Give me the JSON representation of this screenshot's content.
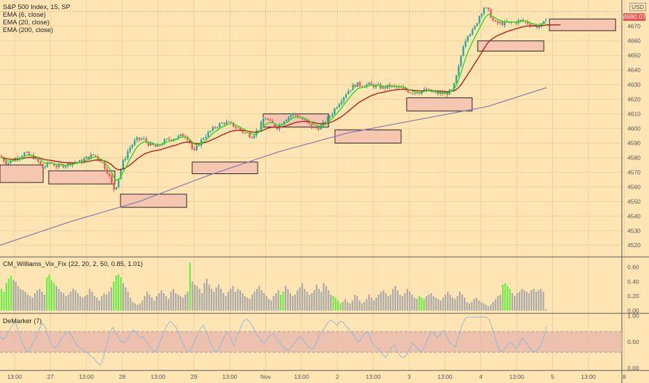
{
  "main_legend": {
    "title": "S&P 500 Index, 15, SP",
    "ema6": "EMA (6, close)",
    "ema20": "EMA (20, close)",
    "ema200": "EMA (200, close)"
  },
  "currency": "USD",
  "current_price": "4680.07",
  "vix_legend": "CM_Williams_Vix_Fix (22, 20, 2, 50, 0.85, 1.01)",
  "dem_legend": "DeMarker (7)",
  "colors": {
    "background": "#ffe5b4",
    "candle_up": "#26a69a",
    "candle_down": "#ef5350",
    "ema6": "#22dd22",
    "ema20": "#b71c1c",
    "ema200": "#8a7fb0",
    "zone_fill": "#f5c6b0",
    "vix_normal": "#a9a9a9",
    "vix_spike": "#66ee44",
    "demarker_line": "#8fb8d8",
    "demarker_band": "#e7b9ac"
  },
  "chart_data": [
    {
      "type": "candlestick",
      "title": "S&P 500 Index, 15, SP",
      "x_ticks": [
        "13:00",
        "27",
        "13:00",
        "28",
        "13:00",
        "29",
        "13:00",
        "Nov",
        "13:00",
        "2",
        "13:00",
        "3",
        "13:00",
        "4",
        "13:00",
        "5",
        "13:00",
        "8"
      ],
      "y_ticks": [
        4520,
        4530,
        4540,
        4550,
        4560,
        4570,
        4580,
        4590,
        4600,
        4610,
        4620,
        4630,
        4640,
        4650,
        4660,
        4670
      ],
      "ylim": [
        4512,
        4688
      ],
      "grid": true,
      "series": [
        {
          "name": "EMA (6, close)",
          "kind": "line"
        },
        {
          "name": "EMA (20, close)",
          "kind": "line"
        },
        {
          "name": "EMA (200, close)",
          "kind": "line"
        }
      ],
      "trend_points": [
        [
          0,
          4581
        ],
        [
          10,
          4576
        ],
        [
          20,
          4579
        ],
        [
          35,
          4583
        ],
        [
          50,
          4580
        ],
        [
          62,
          4573
        ],
        [
          72,
          4577
        ],
        [
          82,
          4574
        ],
        [
          92,
          4575
        ],
        [
          105,
          4577
        ],
        [
          115,
          4577
        ],
        [
          125,
          4580
        ],
        [
          135,
          4582
        ],
        [
          145,
          4578
        ],
        [
          155,
          4570
        ],
        [
          163,
          4558
        ],
        [
          168,
          4562
        ],
        [
          175,
          4575
        ],
        [
          185,
          4586
        ],
        [
          195,
          4592
        ],
        [
          205,
          4593
        ],
        [
          215,
          4589
        ],
        [
          225,
          4587
        ],
        [
          235,
          4591
        ],
        [
          245,
          4593
        ],
        [
          255,
          4594
        ],
        [
          265,
          4596
        ],
        [
          272,
          4592
        ],
        [
          278,
          4583
        ],
        [
          285,
          4589
        ],
        [
          292,
          4594
        ],
        [
          302,
          4598
        ],
        [
          312,
          4602
        ],
        [
          322,
          4604
        ],
        [
          332,
          4603
        ],
        [
          342,
          4600
        ],
        [
          352,
          4597
        ],
        [
          362,
          4595
        ],
        [
          372,
          4600
        ],
        [
          380,
          4608
        ],
        [
          388,
          4604
        ],
        [
          398,
          4601
        ],
        [
          408,
          4606
        ],
        [
          420,
          4610
        ],
        [
          430,
          4608
        ],
        [
          440,
          4604
        ],
        [
          450,
          4600
        ],
        [
          460,
          4601
        ],
        [
          470,
          4606
        ],
        [
          480,
          4613
        ],
        [
          490,
          4620
        ],
        [
          500,
          4626
        ],
        [
          510,
          4630
        ],
        [
          520,
          4630
        ],
        [
          530,
          4630
        ],
        [
          540,
          4629
        ],
        [
          550,
          4628
        ],
        [
          560,
          4629
        ],
        [
          570,
          4628
        ],
        [
          580,
          4627
        ],
        [
          590,
          4625
        ],
        [
          600,
          4625
        ],
        [
          610,
          4626
        ],
        [
          620,
          4625
        ],
        [
          630,
          4624
        ],
        [
          640,
          4624
        ],
        [
          650,
          4626
        ],
        [
          658,
          4640
        ],
        [
          665,
          4657
        ],
        [
          672,
          4665
        ],
        [
          680,
          4667
        ],
        [
          688,
          4677
        ],
        [
          695,
          4683
        ],
        [
          702,
          4680
        ],
        [
          710,
          4672
        ],
        [
          720,
          4672
        ],
        [
          730,
          4672
        ],
        [
          740,
          4673
        ],
        [
          750,
          4674
        ],
        [
          760,
          4672
        ],
        [
          770,
          4670
        ],
        [
          780,
          4671
        ],
        [
          785,
          4677
        ]
      ],
      "ema200_points": [
        [
          0,
          4520
        ],
        [
          100,
          4536
        ],
        [
          200,
          4550
        ],
        [
          300,
          4568
        ],
        [
          400,
          4584
        ],
        [
          500,
          4597
        ],
        [
          600,
          4606
        ],
        [
          700,
          4615
        ],
        [
          785,
          4628
        ]
      ],
      "support_zones": [
        {
          "x0": 0,
          "x1": 62,
          "lo": 4563,
          "hi": 4575
        },
        {
          "x0": 70,
          "x1": 165,
          "lo": 4562,
          "hi": 4571
        },
        {
          "x0": 173,
          "x1": 268,
          "lo": 4546,
          "hi": 4555
        },
        {
          "x0": 276,
          "x1": 370,
          "lo": 4569,
          "hi": 4577
        },
        {
          "x0": 378,
          "x1": 472,
          "lo": 4601,
          "hi": 4610
        },
        {
          "x0": 481,
          "x1": 576,
          "lo": 4590,
          "hi": 4599
        },
        {
          "x0": 584,
          "x1": 678,
          "lo": 4612,
          "hi": 4621
        },
        {
          "x0": 686,
          "x1": 781,
          "lo": 4653,
          "hi": 4660
        },
        {
          "x0": 789,
          "x1": 884,
          "lo": 4667,
          "hi": 4675
        }
      ]
    },
    {
      "type": "bar",
      "title": "CM_Williams_Vix_Fix (22, 20, 2, 50, 0.85, 1.01)",
      "y_ticks": [
        0.0,
        0.2,
        0.4,
        0.6
      ],
      "ylim": [
        0,
        0.72
      ],
      "values": [
        0.3,
        0.26,
        0.38,
        0.44,
        0.48,
        0.42,
        0.4,
        0.34,
        0.3,
        0.28,
        0.26,
        0.22,
        0.2,
        0.18,
        0.24,
        0.28,
        0.3,
        0.26,
        0.22,
        0.46,
        0.5,
        0.42,
        0.38,
        0.34,
        0.3,
        0.26,
        0.24,
        0.2,
        0.22,
        0.26,
        0.3,
        0.28,
        0.24,
        0.2,
        0.18,
        0.2,
        0.22,
        0.3,
        0.26,
        0.2,
        0.18,
        0.14,
        0.2,
        0.24,
        0.22,
        0.26,
        0.32,
        0.4,
        0.48,
        0.5,
        0.46,
        0.38,
        0.32,
        0.26,
        0.18,
        0.12,
        0.1,
        0.08,
        0.1,
        0.14,
        0.2,
        0.26,
        0.22,
        0.18,
        0.14,
        0.2,
        0.24,
        0.28,
        0.24,
        0.2,
        0.16,
        0.26,
        0.3,
        0.24,
        0.22,
        0.2,
        0.18,
        0.22,
        0.26,
        0.66,
        0.4,
        0.36,
        0.34,
        0.3,
        0.24,
        0.38,
        0.44,
        0.36,
        0.3,
        0.26,
        0.32,
        0.36,
        0.3,
        0.24,
        0.2,
        0.26,
        0.3,
        0.34,
        0.26,
        0.3,
        0.28,
        0.24,
        0.2,
        0.18,
        0.16,
        0.22,
        0.26,
        0.3,
        0.34,
        0.28,
        0.24,
        0.2,
        0.16,
        0.14,
        0.2,
        0.24,
        0.28,
        0.22,
        0.26,
        0.34,
        0.3,
        0.24,
        0.2,
        0.22,
        0.28,
        0.32,
        0.38,
        0.3,
        0.26,
        0.22,
        0.24,
        0.28,
        0.36,
        0.3,
        0.26,
        0.38,
        0.34,
        0.28,
        0.22,
        0.2,
        0.18,
        0.14,
        0.1,
        0.12,
        0.16,
        0.12,
        0.1,
        0.14,
        0.22,
        0.2,
        0.14,
        0.1,
        0.12,
        0.16,
        0.22,
        0.18,
        0.14,
        0.18,
        0.22,
        0.26,
        0.28,
        0.24,
        0.2,
        0.22,
        0.3,
        0.34,
        0.28,
        0.22,
        0.2,
        0.24,
        0.3,
        0.26,
        0.22,
        0.18,
        0.16,
        0.2,
        0.18,
        0.16,
        0.2,
        0.22,
        0.24,
        0.2,
        0.18,
        0.16,
        0.14,
        0.18,
        0.22,
        0.26,
        0.22,
        0.18,
        0.16,
        0.2,
        0.26,
        0.22,
        0.18,
        0.12,
        0.1,
        0.12,
        0.16,
        0.18,
        0.14,
        0.12,
        0.1,
        0.08,
        0.06,
        0.08,
        0.12,
        0.16,
        0.2,
        0.22,
        0.36,
        0.38,
        0.34,
        0.3,
        0.24,
        0.2,
        0.24,
        0.26,
        0.3,
        0.28,
        0.26,
        0.24,
        0.28,
        0.3,
        0.26,
        0.28,
        0.3,
        0.26,
        0.02
      ],
      "spike_indices": [
        0,
        1,
        2,
        3,
        4,
        19,
        20,
        21,
        22,
        47,
        48,
        49,
        50,
        79,
        117,
        118,
        139,
        140,
        141,
        142,
        175,
        176,
        177,
        210,
        211,
        212,
        213
      ]
    },
    {
      "type": "line",
      "title": "DeMarker (7)",
      "y_ticks": [
        0.0,
        0.5,
        1.0
      ],
      "ylim": [
        -0.05,
        1.05
      ],
      "band": [
        0.3,
        0.7
      ],
      "values": [
        0.6,
        0.55,
        0.6,
        0.72,
        0.82,
        0.9,
        0.7,
        0.55,
        0.4,
        0.3,
        0.38,
        0.5,
        0.62,
        0.76,
        0.86,
        0.78,
        0.58,
        0.45,
        0.38,
        0.42,
        0.55,
        0.62,
        0.7,
        0.66,
        0.58,
        0.46,
        0.4,
        0.36,
        0.32,
        0.28,
        0.22,
        0.18,
        0.1,
        0.05,
        0.2,
        0.42,
        0.64,
        0.78,
        0.7,
        0.58,
        0.5,
        0.48,
        0.55,
        0.68,
        0.74,
        0.66,
        0.58,
        0.6,
        0.52,
        0.44,
        0.36,
        0.3,
        0.4,
        0.54,
        0.7,
        0.82,
        0.9,
        0.84,
        0.78,
        0.66,
        0.5,
        0.38,
        0.3,
        0.36,
        0.5,
        0.62,
        0.76,
        0.82,
        0.68,
        0.52,
        0.4,
        0.3,
        0.34,
        0.48,
        0.62,
        0.7,
        0.56,
        0.42,
        0.6,
        0.74,
        0.88,
        0.94,
        0.9,
        0.82,
        0.7,
        0.6,
        0.52,
        0.48,
        0.56,
        0.62,
        0.66,
        0.58,
        0.5,
        0.42,
        0.36,
        0.34,
        0.4,
        0.48,
        0.56,
        0.6,
        0.52,
        0.44,
        0.38,
        0.36,
        0.46,
        0.6,
        0.7,
        0.78,
        0.88,
        0.92,
        0.88,
        0.82,
        0.9,
        0.88,
        0.8,
        0.74,
        0.66,
        0.58,
        0.5,
        0.56,
        0.66,
        0.7,
        0.56,
        0.44,
        0.4,
        0.34,
        0.26,
        0.2,
        0.3,
        0.4,
        0.44,
        0.3,
        0.22,
        0.2,
        0.26,
        0.38,
        0.48,
        0.4,
        0.34,
        0.32,
        0.44,
        0.58,
        0.7,
        0.66,
        0.58,
        0.64,
        0.72,
        0.62,
        0.5,
        0.44,
        0.4,
        0.6,
        0.8,
        0.94,
        0.98,
        0.98,
        0.98,
        0.98,
        0.98,
        0.98,
        0.98,
        0.94,
        0.78,
        0.58,
        0.4,
        0.3,
        0.36,
        0.44,
        0.5,
        0.44,
        0.36,
        0.48,
        0.58,
        0.52,
        0.42,
        0.34,
        0.3,
        0.36,
        0.42,
        0.58,
        0.8
      ]
    }
  ]
}
